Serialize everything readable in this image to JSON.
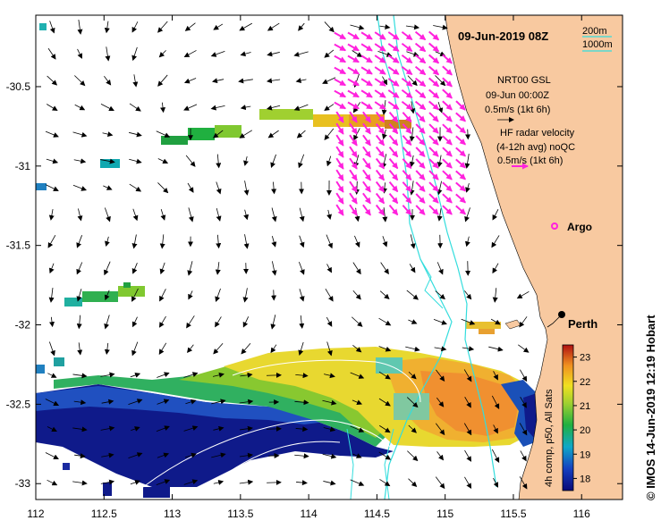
{
  "map": {
    "title": "09-Jun-2019 08Z",
    "x_ticks": [
      "112",
      "112.5",
      "113",
      "113.5",
      "114",
      "114.5",
      "115",
      "115.5",
      "116"
    ],
    "y_ticks": [
      "-30.5",
      "-31",
      "-31.5",
      "-32",
      "-32.5",
      "-33"
    ],
    "x_range": [
      112,
      116.3
    ],
    "y_range": [
      -33.1,
      -30.05
    ],
    "land_color": "#f8c9a0",
    "isobath_color": "#33dddd",
    "radar_arrow_color": "#ff22dd",
    "model_arrow_color": "#000000"
  },
  "legend": {
    "isobath_200": "200m",
    "isobath_1000": "1000m",
    "model_title": "NRT00 GSL",
    "model_time": "09-Jun 00:00Z",
    "model_scale": "0.5m/s (1kt 6h)",
    "radar_title": "HF radar velocity",
    "radar_subtitle": "(4-12h avg) noQC",
    "radar_scale": "0.5m/s (1kt 6h)",
    "argo_label": "Argo",
    "city_label": "Perth"
  },
  "colorbar": {
    "label": "4h comp, p50, All Sats",
    "ticks": [
      "18",
      "19",
      "20",
      "21",
      "22",
      "23"
    ],
    "range": [
      17.5,
      23.5
    ]
  },
  "credit": "© IMOS 14-Jun-2019 12:19 Hobart"
}
